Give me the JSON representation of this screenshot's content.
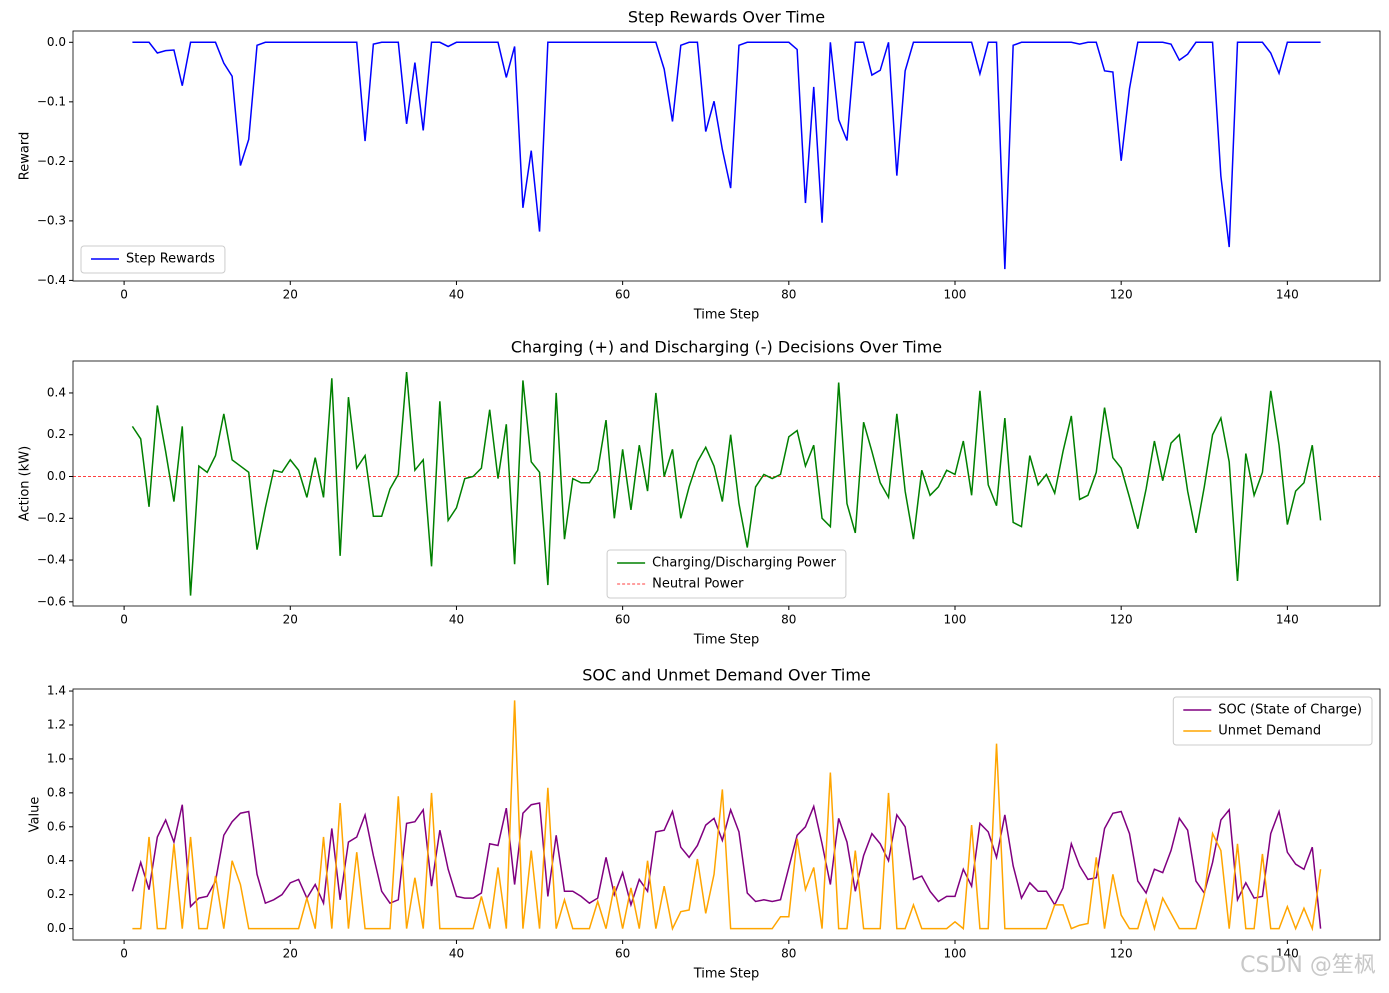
{
  "chart_data": [
    {
      "type": "line",
      "title": "Step Rewards Over Time",
      "xlabel": "Time Step",
      "ylabel": "Reward",
      "x": [
        1,
        2,
        3,
        4,
        5,
        6,
        7,
        8,
        9,
        10,
        11,
        12,
        13,
        14,
        15,
        16,
        17,
        18,
        19,
        20,
        21,
        22,
        23,
        24,
        25,
        26,
        27,
        28,
        29,
        30,
        31,
        32,
        33,
        34,
        35,
        36,
        37,
        38,
        39,
        40,
        41,
        42,
        43,
        44,
        45,
        46,
        47,
        48,
        49,
        50,
        51,
        52,
        53,
        54,
        55,
        56,
        57,
        58,
        59,
        60,
        61,
        62,
        63,
        64,
        65,
        66,
        67,
        68,
        69,
        70,
        71,
        72,
        73,
        74,
        75,
        76,
        77,
        78,
        79,
        80,
        81,
        82,
        83,
        84,
        85,
        86,
        87,
        88,
        89,
        90,
        91,
        92,
        93,
        94,
        95,
        96,
        97,
        98,
        99,
        100,
        101,
        102,
        103,
        104,
        105,
        106,
        107,
        108,
        109,
        110,
        111,
        112,
        113,
        114,
        115,
        116,
        117,
        118,
        119,
        120,
        121,
        122,
        123,
        124,
        125,
        126,
        127,
        128,
        129,
        130,
        131,
        132,
        133,
        134,
        135,
        136,
        137,
        138,
        139,
        140,
        141,
        142,
        143,
        144
      ],
      "series": [
        {
          "name": "Step Rewards",
          "color": "#0000ff",
          "values": [
            0,
            0,
            0,
            -0.018,
            -0.014,
            -0.013,
            -0.073,
            0,
            0,
            0,
            0,
            -0.035,
            -0.057,
            -0.207,
            -0.163,
            -0.005,
            0,
            0,
            0,
            0,
            0,
            0,
            0,
            0,
            0,
            0,
            0,
            0,
            -0.166,
            -0.003,
            0,
            0,
            0,
            -0.137,
            -0.034,
            -0.148,
            0,
            0,
            -0.007,
            0,
            0,
            0,
            0,
            0,
            0,
            -0.059,
            -0.007,
            -0.278,
            -0.182,
            -0.318,
            0,
            0,
            0,
            0,
            0,
            0,
            0,
            0,
            0,
            0,
            0,
            0,
            0,
            0,
            -0.045,
            -0.133,
            -0.005,
            0,
            0,
            -0.15,
            -0.099,
            -0.18,
            -0.245,
            -0.005,
            0,
            0,
            0,
            0,
            0,
            0,
            -0.012,
            -0.27,
            -0.075,
            -0.303,
            0,
            -0.13,
            -0.165,
            0,
            0,
            -0.055,
            -0.047,
            0,
            -0.224,
            -0.048,
            0,
            0,
            0,
            0,
            0,
            0,
            0,
            0,
            -0.053,
            0,
            0,
            -0.381,
            -0.005,
            0,
            0,
            0,
            0,
            0,
            0,
            0,
            -0.003,
            0,
            0,
            -0.048,
            -0.05,
            -0.199,
            -0.078,
            0,
            0,
            0,
            0,
            -0.003,
            -0.03,
            -0.02,
            0,
            0,
            0,
            -0.225,
            -0.344,
            0,
            0,
            0,
            0,
            -0.018,
            -0.052,
            0,
            0,
            0,
            0,
            0
          ]
        }
      ],
      "xlim": [
        -6.15,
        151.15
      ],
      "ylim": [
        -0.401,
        0.019
      ],
      "xticks": [
        0,
        20,
        40,
        60,
        80,
        100,
        120,
        140
      ],
      "yticks": [
        {
          "value": -0.4,
          "label": "−0.4"
        },
        {
          "value": -0.3,
          "label": "−0.3"
        },
        {
          "value": -0.2,
          "label": "−0.2"
        },
        {
          "value": -0.1,
          "label": "−0.1"
        },
        {
          "value": 0,
          "label": "0.0"
        }
      ],
      "legend": "lower left"
    },
    {
      "type": "line",
      "title": "Charging (+) and Discharging (-) Decisions Over Time",
      "xlabel": "Time Step",
      "ylabel": "Action (kW)",
      "x": [
        1,
        2,
        3,
        4,
        5,
        6,
        7,
        8,
        9,
        10,
        11,
        12,
        13,
        14,
        15,
        16,
        17,
        18,
        19,
        20,
        21,
        22,
        23,
        24,
        25,
        26,
        27,
        28,
        29,
        30,
        31,
        32,
        33,
        34,
        35,
        36,
        37,
        38,
        39,
        40,
        41,
        42,
        43,
        44,
        45,
        46,
        47,
        48,
        49,
        50,
        51,
        52,
        53,
        54,
        55,
        56,
        57,
        58,
        59,
        60,
        61,
        62,
        63,
        64,
        65,
        66,
        67,
        68,
        69,
        70,
        71,
        72,
        73,
        74,
        75,
        76,
        77,
        78,
        79,
        80,
        81,
        82,
        83,
        84,
        85,
        86,
        87,
        88,
        89,
        90,
        91,
        92,
        93,
        94,
        95,
        96,
        97,
        98,
        99,
        100,
        101,
        102,
        103,
        104,
        105,
        106,
        107,
        108,
        109,
        110,
        111,
        112,
        113,
        114,
        115,
        116,
        117,
        118,
        119,
        120,
        121,
        122,
        123,
        124,
        125,
        126,
        127,
        128,
        129,
        130,
        131,
        132,
        133,
        134,
        135,
        136,
        137,
        138,
        139,
        140,
        141,
        142,
        143,
        144
      ],
      "series": [
        {
          "name": "Charging/Discharging Power",
          "color": "#008000",
          "values": [
            0.24,
            0.18,
            -0.145,
            0.34,
            0.12,
            -0.12,
            0.24,
            -0.57,
            0.05,
            0.02,
            0.1,
            0.3,
            0.08,
            0.05,
            0.02,
            -0.35,
            -0.15,
            0.03,
            0.02,
            0.08,
            0.03,
            -0.1,
            0.09,
            -0.1,
            0.47,
            -0.38,
            0.38,
            0.04,
            0.1,
            -0.19,
            -0.19,
            -0.06,
            0.01,
            0.5,
            0.03,
            0.08,
            -0.43,
            0.36,
            -0.21,
            -0.15,
            -0.01,
            0.0,
            0.04,
            0.32,
            -0.01,
            0.25,
            -0.42,
            0.46,
            0.07,
            0.02,
            -0.52,
            0.4,
            -0.3,
            -0.01,
            -0.03,
            -0.03,
            0.03,
            0.27,
            -0.2,
            0.13,
            -0.16,
            0.15,
            -0.07,
            0.4,
            0.0,
            0.13,
            -0.2,
            -0.05,
            0.07,
            0.14,
            0.05,
            -0.12,
            0.2,
            -0.13,
            -0.34,
            -0.05,
            0.01,
            -0.01,
            0.01,
            0.19,
            0.22,
            0.05,
            0.15,
            -0.2,
            -0.24,
            0.45,
            -0.13,
            -0.27,
            0.26,
            0.12,
            -0.03,
            -0.1,
            0.3,
            -0.07,
            -0.3,
            0.03,
            -0.09,
            -0.05,
            0.03,
            0.01,
            0.17,
            -0.09,
            0.41,
            -0.04,
            -0.14,
            0.28,
            -0.22,
            -0.24,
            0.1,
            -0.04,
            0.01,
            -0.08,
            0.12,
            0.29,
            -0.11,
            -0.09,
            0.02,
            0.33,
            0.09,
            0.04,
            -0.1,
            -0.25,
            -0.06,
            0.17,
            -0.02,
            0.16,
            0.2,
            -0.07,
            -0.27,
            -0.05,
            0.2,
            0.28,
            0.07,
            -0.5,
            0.11,
            -0.09,
            0.02,
            0.41,
            0.15,
            -0.23,
            -0.07,
            -0.03,
            0.15,
            -0.21
          ]
        }
      ],
      "hlines": [
        {
          "name": "Neutral Power",
          "color": "#ff0000",
          "y": 0,
          "dashed": true
        }
      ],
      "xlim": [
        -6.15,
        151.15
      ],
      "ylim": [
        -0.62,
        0.553
      ],
      "xticks": [
        0,
        20,
        40,
        60,
        80,
        100,
        120,
        140
      ],
      "yticks": [
        {
          "value": -0.6,
          "label": "−0.6"
        },
        {
          "value": -0.4,
          "label": "−0.4"
        },
        {
          "value": -0.2,
          "label": "−0.2"
        },
        {
          "value": 0,
          "label": "0.0"
        },
        0.2,
        0.4
      ],
      "legend": "lower center"
    },
    {
      "type": "line",
      "title": "SOC and Unmet Demand Over Time",
      "xlabel": "Time Step",
      "ylabel": "Value",
      "x": [
        1,
        2,
        3,
        4,
        5,
        6,
        7,
        8,
        9,
        10,
        11,
        12,
        13,
        14,
        15,
        16,
        17,
        18,
        19,
        20,
        21,
        22,
        23,
        24,
        25,
        26,
        27,
        28,
        29,
        30,
        31,
        32,
        33,
        34,
        35,
        36,
        37,
        38,
        39,
        40,
        41,
        42,
        43,
        44,
        45,
        46,
        47,
        48,
        49,
        50,
        51,
        52,
        53,
        54,
        55,
        56,
        57,
        58,
        59,
        60,
        61,
        62,
        63,
        64,
        65,
        66,
        67,
        68,
        69,
        70,
        71,
        72,
        73,
        74,
        75,
        76,
        77,
        78,
        79,
        80,
        81,
        82,
        83,
        84,
        85,
        86,
        87,
        88,
        89,
        90,
        91,
        92,
        93,
        94,
        95,
        96,
        97,
        98,
        99,
        100,
        101,
        102,
        103,
        104,
        105,
        106,
        107,
        108,
        109,
        110,
        111,
        112,
        113,
        114,
        115,
        116,
        117,
        118,
        119,
        120,
        121,
        122,
        123,
        124,
        125,
        126,
        127,
        128,
        129,
        130,
        131,
        132,
        133,
        134,
        135,
        136,
        137,
        138,
        139,
        140,
        141,
        142,
        143,
        144
      ],
      "series": [
        {
          "name": "SOC (State of Charge)",
          "color": "#800080",
          "values": [
            0.22,
            0.39,
            0.23,
            0.54,
            0.64,
            0.51,
            0.73,
            0.13,
            0.18,
            0.19,
            0.28,
            0.55,
            0.63,
            0.68,
            0.69,
            0.32,
            0.15,
            0.17,
            0.2,
            0.27,
            0.29,
            0.18,
            0.26,
            0.15,
            0.59,
            0.17,
            0.51,
            0.54,
            0.67,
            0.43,
            0.22,
            0.15,
            0.17,
            0.62,
            0.63,
            0.7,
            0.25,
            0.58,
            0.35,
            0.19,
            0.18,
            0.18,
            0.21,
            0.5,
            0.49,
            0.71,
            0.26,
            0.68,
            0.73,
            0.74,
            0.19,
            0.55,
            0.22,
            0.22,
            0.19,
            0.15,
            0.18,
            0.42,
            0.2,
            0.33,
            0.14,
            0.29,
            0.22,
            0.57,
            0.58,
            0.69,
            0.48,
            0.42,
            0.49,
            0.61,
            0.65,
            0.52,
            0.7,
            0.57,
            0.21,
            0.16,
            0.17,
            0.16,
            0.17,
            0.36,
            0.55,
            0.6,
            0.72,
            0.5,
            0.26,
            0.65,
            0.51,
            0.22,
            0.43,
            0.56,
            0.5,
            0.4,
            0.67,
            0.6,
            0.29,
            0.31,
            0.22,
            0.16,
            0.19,
            0.19,
            0.35,
            0.25,
            0.62,
            0.57,
            0.42,
            0.67,
            0.37,
            0.18,
            0.27,
            0.22,
            0.22,
            0.14,
            0.24,
            0.5,
            0.37,
            0.29,
            0.3,
            0.59,
            0.68,
            0.69,
            0.56,
            0.28,
            0.21,
            0.35,
            0.33,
            0.46,
            0.65,
            0.58,
            0.28,
            0.21,
            0.39,
            0.64,
            0.7,
            0.17,
            0.27,
            0.18,
            0.19,
            0.56,
            0.69,
            0.45,
            0.38,
            0.35,
            0.48,
            0
          ]
        },
        {
          "name": "Unmet Demand",
          "color": "#ffa500",
          "values": [
            0,
            0,
            0.54,
            0,
            0,
            0.5,
            0,
            0.54,
            0,
            0,
            0.31,
            0,
            0.4,
            0.26,
            0,
            0,
            0,
            0,
            0,
            0,
            0,
            0.18,
            0,
            0.54,
            0,
            0.74,
            0,
            0.45,
            0,
            0,
            0,
            0,
            0.78,
            0,
            0.3,
            0,
            0.8,
            0,
            0,
            0,
            0,
            0,
            0.19,
            0,
            0.36,
            0,
            1.345,
            0,
            0.46,
            0,
            0.83,
            0,
            0.17,
            0,
            0,
            0,
            0.16,
            0,
            0.25,
            0,
            0.24,
            0,
            0.4,
            0,
            0.25,
            0,
            0.1,
            0.11,
            0.41,
            0.09,
            0.32,
            0.82,
            0,
            0,
            0,
            0,
            0,
            0,
            0.07,
            0.07,
            0.53,
            0.23,
            0.36,
            0,
            0.92,
            0,
            0,
            0.46,
            0,
            0,
            0,
            0.8,
            0,
            0,
            0.14,
            0,
            0,
            0,
            0,
            0.04,
            0,
            0.61,
            0,
            0,
            1.09,
            0,
            0,
            0,
            0,
            0,
            0,
            0.14,
            0.14,
            0,
            0.02,
            0.03,
            0.42,
            0,
            0.32,
            0.08,
            0,
            0,
            0.17,
            0,
            0.18,
            0.09,
            0,
            0,
            0,
            0.2,
            0.56,
            0.46,
            0,
            0.5,
            0,
            0,
            0.44,
            0,
            0,
            0.13,
            0,
            0.12,
            0,
            0.35
          ]
        }
      ],
      "xlim": [
        -6.15,
        151.15
      ],
      "ylim": [
        -0.067,
        1.412
      ],
      "xticks": [
        0,
        20,
        40,
        60,
        80,
        100,
        120,
        140
      ],
      "yticks": [
        {
          "value": 0,
          "label": "0.0"
        },
        0.2,
        0.4,
        0.6,
        0.8,
        {
          "value": 1,
          "label": "1.0"
        },
        1.2,
        1.4
      ],
      "legend": "upper right"
    }
  ],
  "watermark": "CSDN @笙枫"
}
